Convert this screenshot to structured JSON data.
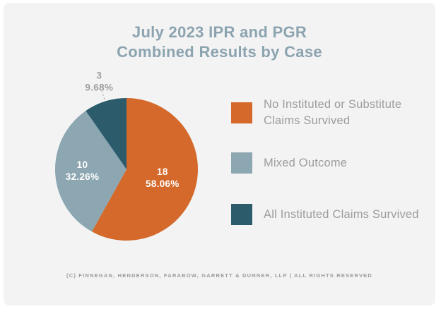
{
  "header": {
    "title_lines": [
      "July 2023 IPR and PGR",
      "Combined Results by Case"
    ]
  },
  "chart_data": {
    "type": "pie",
    "title": "July 2023 IPR and PGR Combined Results by Case",
    "start_angle_deg": 0,
    "direction": "clockwise",
    "legend_position": "right",
    "slices": [
      {
        "label": "No Instituted or Substitute Claims Survived",
        "count": 18,
        "percent_label": "58.06%",
        "percent": 58.06,
        "color": "#D4692B",
        "label_placement": "inside"
      },
      {
        "label": "Mixed Outcome",
        "count": 10,
        "percent_label": "32.26%",
        "percent": 32.26,
        "color": "#8CA7B1",
        "label_placement": "inside"
      },
      {
        "label": "All Instituted Claims Survived",
        "count": 3,
        "percent_label": "9.68%",
        "percent": 9.68,
        "color": "#2C5B6C",
        "label_placement": "outside"
      }
    ]
  },
  "legend": {
    "items": [
      {
        "label": "No Instituted or Substitute Claims Survived"
      },
      {
        "label": "Mixed Outcome"
      },
      {
        "label": "All Instituted Claims Survived"
      }
    ]
  },
  "footer": {
    "copyright": "(C) FINNEGAN, HENDERSON, FARABOW, GARRETT & DUNNER, LLP | ALL RIGHTS RESERVED"
  },
  "colors": {
    "card_background": "#F3F3F4",
    "title_text": "#8CA4AF",
    "legend_text": "#9C9C9C",
    "inside_label_text": "#FFFFFF",
    "outside_label_text": "#9E9E9E",
    "leader_line": "#ADADAD"
  }
}
